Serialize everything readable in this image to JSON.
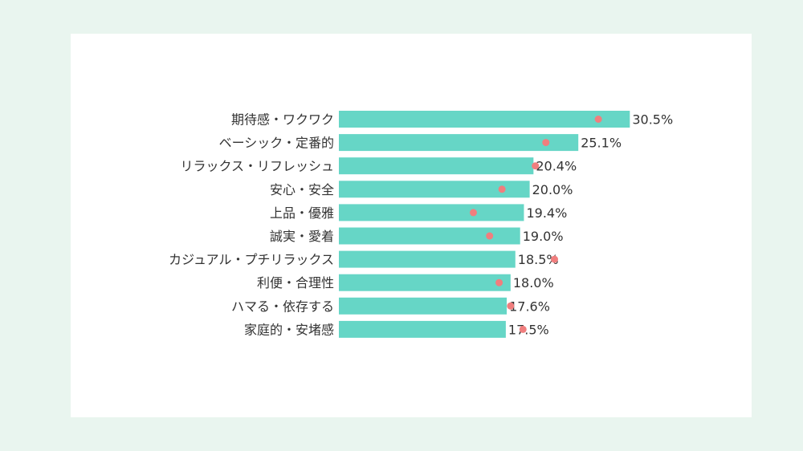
{
  "chart_data": {
    "type": "bar",
    "orientation": "horizontal",
    "categories": [
      "期待感・ワクワク",
      "ベーシック・定番的",
      "リラックス・リフレッシュ",
      "安心・安全",
      "上品・優雅",
      "誠実・愛着",
      "カジュアル・プチリラックス",
      "利便・合理性",
      "ハマる・依存する",
      "家庭的・安堵感"
    ],
    "series": [
      {
        "values": [
          30.5,
          25.1,
          20.4,
          20.0,
          19.4,
          19.0,
          18.5,
          18.0,
          17.6,
          17.5
        ],
        "labels": [
          "30.5%",
          "25.1%",
          "20.4%",
          "20.0%",
          "19.4%",
          "19.0%",
          "18.5%",
          "18.0%",
          "17.6%",
          "17.5%"
        ],
        "color": "#66d6c6"
      },
      {
        "marker": "dot",
        "values": [
          27.2,
          21.7,
          20.6,
          17.1,
          14.1,
          15.8,
          22.6,
          16.8,
          18.0,
          19.3
        ],
        "color": "#f07e7e"
      }
    ],
    "xlim": [
      0,
      31
    ],
    "grid": false,
    "legend": false
  },
  "colors": {
    "background": "#e9f5ef",
    "panel": "#ffffff",
    "label_text": "#333333"
  }
}
